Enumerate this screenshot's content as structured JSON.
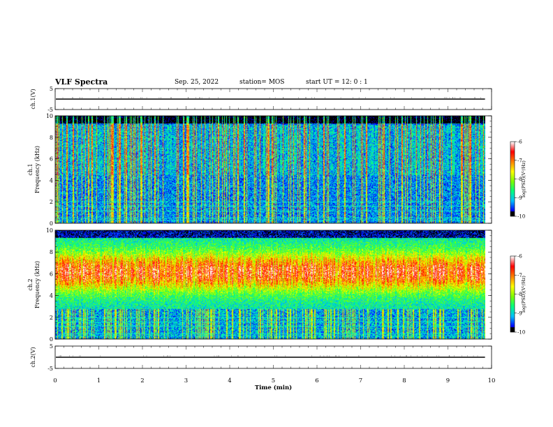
{
  "header": {
    "title": "VLF Spectra",
    "date": "Sep. 25, 2022",
    "station": "station= MOS",
    "start": "start  UT =   12: 0   : 1"
  },
  "chart_data": [
    {
      "type": "line",
      "title": "",
      "ylabel": "ch.1(V)",
      "ylim": [
        -5,
        5
      ],
      "yticks": [
        "5",
        "-5"
      ],
      "series": [
        {
          "values_description": "",
          "values": [
            0,
            0
          ]
        }
      ],
      "x": [
        0,
        9.85
      ]
    },
    {
      "type": "heatmap",
      "ylabel": "ch.1\nFrequency (kHz)",
      "ylabel_top": "ch.1",
      "ylabel_bottom": "Frequency (kHz)",
      "ylim": [
        0,
        10
      ],
      "yticks": [
        "0",
        "2",
        "4",
        "6",
        "8",
        "10"
      ],
      "xlim": [
        0,
        10
      ],
      "data_extent_min": 9.85,
      "colorbar": {
        "label": "log(PSD)(V²/Hz)",
        "range": [
          -10,
          -6
        ],
        "ticks": [
          "-6",
          "-7",
          "-8",
          "-9",
          "-10"
        ]
      }
    },
    {
      "type": "heatmap",
      "ylabel_top": "ch.2",
      "ylabel_bottom": "Frequency (kHz)",
      "ylim": [
        0,
        10
      ],
      "yticks": [
        "0",
        "2",
        "4",
        "6",
        "8",
        "10"
      ],
      "xlim": [
        0,
        10
      ],
      "data_extent_min": 9.85,
      "colorbar": {
        "label": "log(PSD)(V²/Hz)",
        "range": [
          -10,
          -6
        ],
        "ticks": [
          "-6",
          "-7",
          "-8",
          "-9",
          "-10"
        ]
      }
    },
    {
      "type": "line",
      "ylabel": "ch.2(V)",
      "ylim": [
        -5,
        5
      ],
      "yticks": [
        "5",
        "-5"
      ],
      "x": [
        0,
        9.85
      ],
      "series": [
        {
          "values": [
            0,
            0
          ]
        }
      ]
    }
  ],
  "xaxis": {
    "label": "Time (min)",
    "range": [
      0,
      10
    ],
    "ticks": [
      "0",
      "1",
      "2",
      "3",
      "4",
      "5",
      "6",
      "7",
      "8",
      "9",
      "10"
    ]
  },
  "colors": {
    "cmap": [
      "#000080",
      "#0000ff",
      "#00c0ff",
      "#00ff80",
      "#80ff00",
      "#ffff00",
      "#ff8000",
      "#ff0000",
      "#ffffff"
    ]
  }
}
